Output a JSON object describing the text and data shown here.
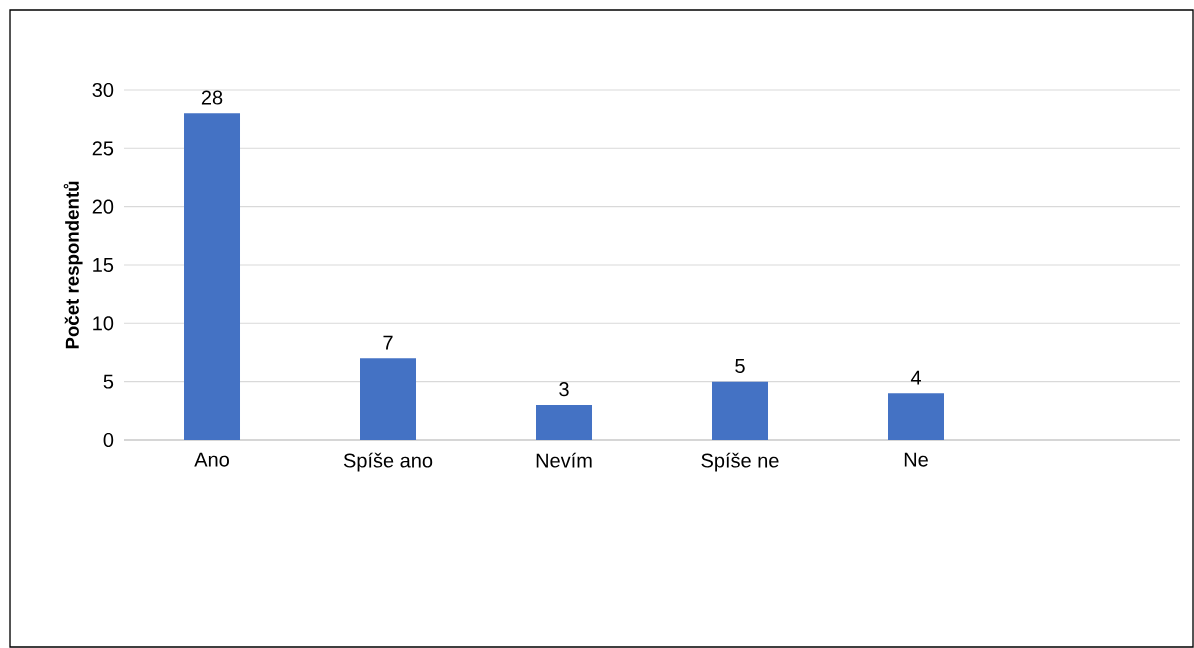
{
  "chart_data": {
    "type": "bar",
    "ylabel": "Počet respondentů",
    "categories": [
      "Ano",
      "Spíše ano",
      "Nevím",
      "Spíše ne",
      "Ne",
      null
    ],
    "values": [
      28,
      7,
      3,
      5,
      4,
      null
    ],
    "color": "#4472c4",
    "ylim": [
      0,
      30
    ],
    "yticks": [
      0,
      5,
      10,
      15,
      20,
      25,
      30
    ],
    "grid": "y",
    "data_labels": true
  }
}
